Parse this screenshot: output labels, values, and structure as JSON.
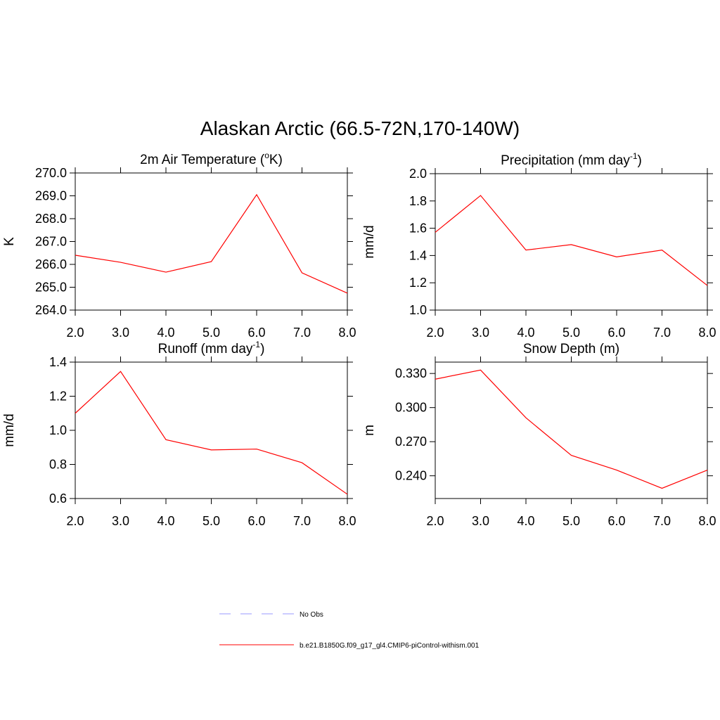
{
  "title": "Alaskan Arctic (66.5-72N,170-140W)",
  "chart_data": [
    {
      "type": "line",
      "title": [
        "2m Air Temperature (",
        "o",
        "K)"
      ],
      "ylabel": "K",
      "x": [
        2,
        3,
        4,
        5,
        6,
        7,
        8
      ],
      "xlim": [
        2,
        8
      ],
      "xticks": [
        {
          "value": 2,
          "label": "2.0"
        },
        {
          "value": 3,
          "label": "3.0"
        },
        {
          "value": 4,
          "label": "4.0"
        },
        {
          "value": 5,
          "label": "5.0"
        },
        {
          "value": 6,
          "label": "6.0"
        },
        {
          "value": 7,
          "label": "7.0"
        },
        {
          "value": 8,
          "label": "8.0"
        }
      ],
      "ylim": [
        264,
        270
      ],
      "yticks": [
        {
          "value": 264,
          "label": "264.0"
        },
        {
          "value": 265,
          "label": "265.0"
        },
        {
          "value": 266,
          "label": "266.0"
        },
        {
          "value": 267,
          "label": "267.0"
        },
        {
          "value": 268,
          "label": "268.0"
        },
        {
          "value": 269,
          "label": "269.0"
        },
        {
          "value": 270,
          "label": "270.0"
        }
      ],
      "values": [
        266.4,
        266.09,
        265.66,
        266.12,
        269.05,
        265.63,
        264.74
      ],
      "color": "#ff0000"
    },
    {
      "type": "line",
      "title": [
        "Precipitation (mm day",
        "-1",
        ")"
      ],
      "ylabel": "mm/d",
      "x": [
        2,
        3,
        4,
        5,
        6,
        7,
        8
      ],
      "xlim": [
        2,
        8
      ],
      "xticks": [
        {
          "value": 2,
          "label": "2.0"
        },
        {
          "value": 3,
          "label": "3.0"
        },
        {
          "value": 4,
          "label": "4.0"
        },
        {
          "value": 5,
          "label": "5.0"
        },
        {
          "value": 6,
          "label": "6.0"
        },
        {
          "value": 7,
          "label": "7.0"
        },
        {
          "value": 8,
          "label": "8.0"
        }
      ],
      "ylim": [
        1.0,
        2.0
      ],
      "yticks": [
        {
          "value": 1.0,
          "label": "1.0"
        },
        1.2,
        1.4,
        1.6,
        1.8,
        {
          "value": 2.0,
          "label": "2.0"
        }
      ],
      "values": [
        1.57,
        1.84,
        1.44,
        1.48,
        1.39,
        1.44,
        1.18
      ],
      "color": "#ff0000"
    },
    {
      "type": "line",
      "title": [
        "Runoff (mm day",
        "-1",
        ")"
      ],
      "ylabel": "mm/d",
      "x": [
        2,
        3,
        4,
        5,
        6,
        7,
        8
      ],
      "xlim": [
        2,
        8
      ],
      "xticks": [
        {
          "value": 2,
          "label": "2.0"
        },
        {
          "value": 3,
          "label": "3.0"
        },
        {
          "value": 4,
          "label": "4.0"
        },
        {
          "value": 5,
          "label": "5.0"
        },
        {
          "value": 6,
          "label": "6.0"
        },
        {
          "value": 7,
          "label": "7.0"
        },
        {
          "value": 8,
          "label": "8.0"
        }
      ],
      "ylim": [
        0.6,
        1.4
      ],
      "yticks": [
        0.6,
        0.8,
        {
          "value": 1.0,
          "label": "1.0"
        },
        1.2,
        1.4
      ],
      "values": [
        1.1,
        1.345,
        0.945,
        0.885,
        0.89,
        0.81,
        0.625
      ],
      "color": "#ff0000"
    },
    {
      "type": "line",
      "title": [
        "Snow Depth (m)"
      ],
      "ylabel": "m",
      "x": [
        2,
        3,
        4,
        5,
        6,
        7,
        8
      ],
      "xlim": [
        2,
        8
      ],
      "xticks": [
        {
          "value": 2,
          "label": "2.0"
        },
        {
          "value": 3,
          "label": "3.0"
        },
        {
          "value": 4,
          "label": "4.0"
        },
        {
          "value": 5,
          "label": "5.0"
        },
        {
          "value": 6,
          "label": "6.0"
        },
        {
          "value": 7,
          "label": "7.0"
        },
        {
          "value": 8,
          "label": "8.0"
        }
      ],
      "ylim": [
        0.22,
        0.34
      ],
      "yticks": [
        {
          "value": 0.24,
          "label": "0.240"
        },
        {
          "value": 0.27,
          "label": "0.270"
        },
        {
          "value": 0.3,
          "label": "0.300"
        },
        {
          "value": 0.33,
          "label": "0.330"
        }
      ],
      "values": [
        0.325,
        0.333,
        0.291,
        0.258,
        0.245,
        0.229,
        0.245
      ],
      "color": "#ff0000"
    }
  ],
  "legend": [
    {
      "name": "No Obs",
      "color": "#9999ff",
      "dashed": true
    },
    {
      "name": "b.e21.B1850G.f09_g17_gl4.CMIP6-piControl-withism.001",
      "color": "#ff0000",
      "dashed": false
    }
  ]
}
